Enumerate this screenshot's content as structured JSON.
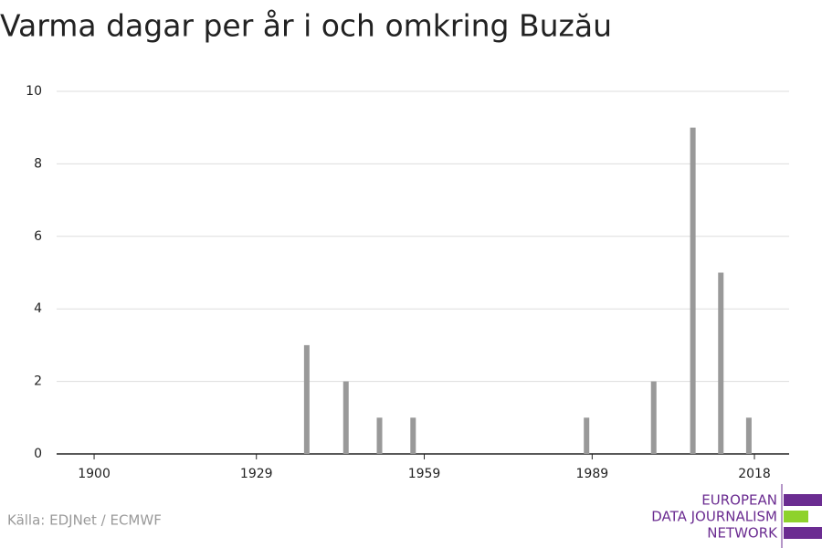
{
  "chart_data": {
    "type": "bar",
    "title": "Varma dagar per år i och omkring Buzău",
    "x": [
      1938,
      1945,
      1951,
      1957,
      1988,
      2000,
      2007,
      2012,
      2017
    ],
    "values": [
      3,
      2,
      1,
      1,
      1,
      2,
      9,
      5,
      1
    ],
    "color": "#999999",
    "xlim": [
      1893.3,
      2024.2
    ],
    "xticks": [
      1900,
      1929,
      1959,
      1989,
      2018
    ],
    "ylim": [
      0,
      10
    ],
    "yticks": [
      0,
      2,
      4,
      6,
      8,
      10
    ],
    "grid": true,
    "source": "Källa: EDJNet / ECMWF",
    "logo": [
      "EUROPEAN",
      "DATA JOURNALISM",
      "NETWORK"
    ]
  }
}
